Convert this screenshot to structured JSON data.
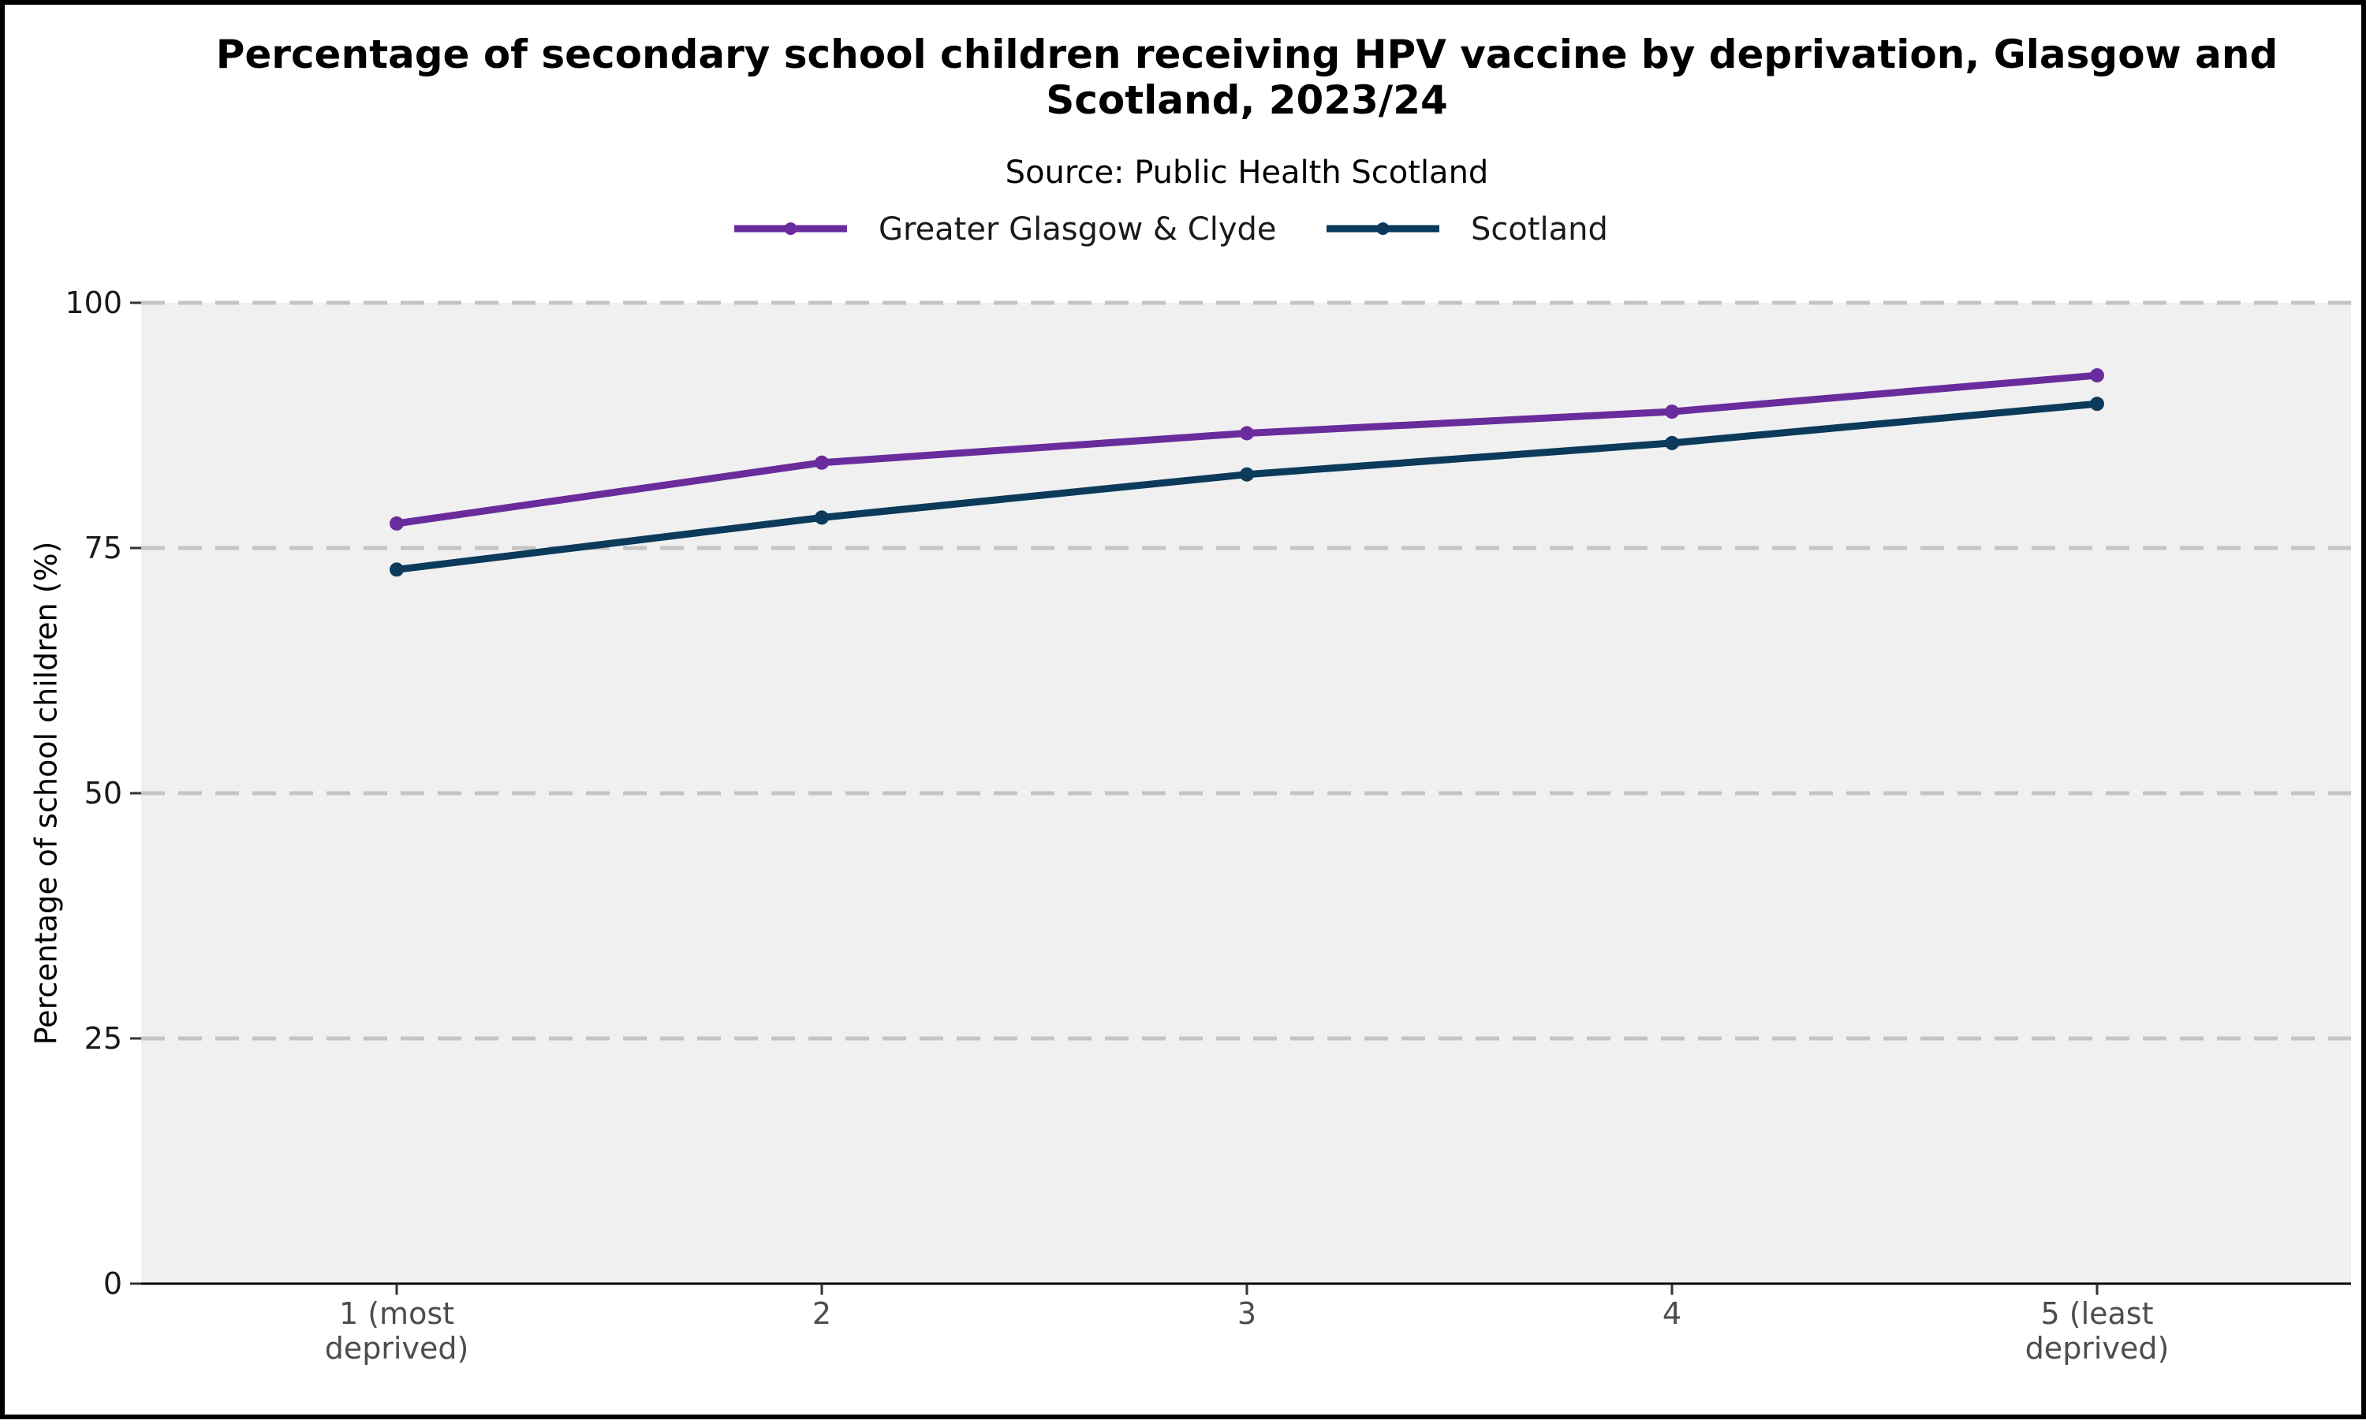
{
  "chart_data": {
    "type": "line",
    "title_lines": [
      "Percentage of secondary school children receiving HPV vaccine by deprivation, Glasgow and",
      "Scotland, 2023/24"
    ],
    "subtitle": "Source: Public Health Scotland",
    "xlabel": "",
    "ylabel": "Percentage of school children (%)",
    "categories": [
      [
        "1 (most",
        "deprived)"
      ],
      [
        "2"
      ],
      [
        "3"
      ],
      [
        "4"
      ],
      [
        "5 (least",
        "deprived)"
      ]
    ],
    "series": [
      {
        "name": "Greater Glasgow & Clyde",
        "color": "#6a2c9c",
        "values": [
          77.5,
          83.7,
          86.7,
          88.9,
          92.6
        ]
      },
      {
        "name": "Scotland",
        "color": "#0b3a5b",
        "values": [
          72.8,
          78.1,
          82.5,
          85.7,
          89.7
        ]
      }
    ],
    "ylim": [
      0,
      100
    ],
    "yticks": [
      0,
      25,
      50,
      75,
      100
    ],
    "grid": true,
    "legend_position": "top"
  }
}
